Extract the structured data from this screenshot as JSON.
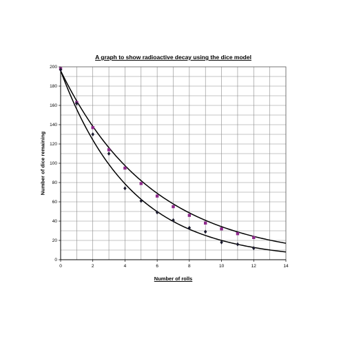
{
  "chart_data": {
    "type": "scatter",
    "title": "A graph to show radioactive decay using the dice model",
    "xlabel": "Number of rolls",
    "ylabel": "Number of dice remaining",
    "xlim": [
      0,
      14
    ],
    "ylim": [
      0,
      200
    ],
    "xticks": [
      "0",
      "2",
      "4",
      "6",
      "8",
      "10",
      "12",
      "14"
    ],
    "yticks": [
      "0",
      "20",
      "40",
      "60",
      "80",
      "100",
      "120",
      "140",
      "160",
      "180",
      "200"
    ],
    "grid": true,
    "legend": "none",
    "series": [
      {
        "color": "#8e2a8c",
        "marker": "square",
        "x": [
          0,
          1,
          2,
          3,
          4,
          5,
          6,
          7,
          8,
          9,
          10,
          11,
          12
        ],
        "y": [
          198,
          163,
          137,
          114,
          95,
          79,
          66,
          55,
          46,
          38,
          32,
          27,
          23
        ],
        "trendline": {
          "start": 196,
          "factor": 0.84,
          "color": "#000000"
        }
      },
      {
        "color": "#1a1a2e",
        "marker": "diamond",
        "x": [
          0,
          1,
          2,
          3,
          4,
          5,
          6,
          7,
          8,
          9,
          10,
          11,
          12
        ],
        "y": [
          197,
          162,
          130,
          110,
          74,
          61,
          49,
          41,
          33,
          29,
          18,
          16,
          12
        ],
        "trendline": {
          "start": 196,
          "factor": 0.796,
          "color": "#000000"
        }
      }
    ]
  }
}
